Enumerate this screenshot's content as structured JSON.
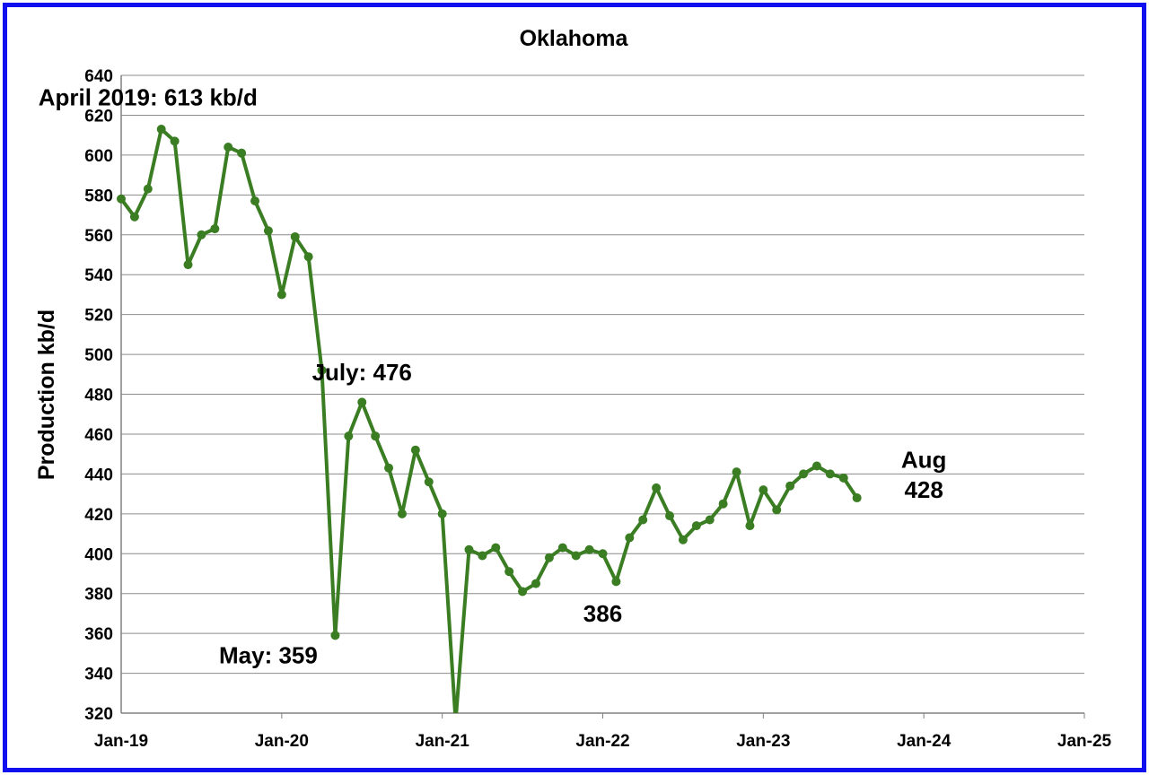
{
  "chart_data": {
    "type": "line",
    "title": "Oklahoma",
    "xlabel": "",
    "ylabel": "Production kb/d",
    "x_tick_labels": [
      "Jan-19",
      "Jan-20",
      "Jan-21",
      "Jan-22",
      "Jan-23",
      "Jan-24",
      "Jan-25"
    ],
    "xlim": [
      "2019-01",
      "2025-01"
    ],
    "ylim": [
      320,
      640
    ],
    "y_ticks": [
      320,
      340,
      360,
      380,
      400,
      420,
      440,
      460,
      480,
      500,
      520,
      540,
      560,
      580,
      600,
      620,
      640
    ],
    "grid": true,
    "legend": "none",
    "series": [
      {
        "color": "#3a7d22",
        "x": [
          "2019-01",
          "2019-02",
          "2019-03",
          "2019-04",
          "2019-05",
          "2019-06",
          "2019-07",
          "2019-08",
          "2019-09",
          "2019-10",
          "2019-11",
          "2019-12",
          "2020-01",
          "2020-02",
          "2020-03",
          "2020-04",
          "2020-05",
          "2020-06",
          "2020-07",
          "2020-08",
          "2020-09",
          "2020-10",
          "2020-11",
          "2020-12",
          "2021-01",
          "2021-02",
          "2021-03",
          "2021-04",
          "2021-05",
          "2021-06",
          "2021-07",
          "2021-08",
          "2021-09",
          "2021-10",
          "2021-11",
          "2021-12",
          "2022-01",
          "2022-02",
          "2022-03",
          "2022-04",
          "2022-05",
          "2022-06",
          "2022-07",
          "2022-08",
          "2022-09",
          "2022-10",
          "2022-11",
          "2022-12",
          "2023-01",
          "2023-02",
          "2023-03",
          "2023-04",
          "2023-05",
          "2023-06",
          "2023-07",
          "2023-08"
        ],
        "values": [
          578,
          569,
          583,
          613,
          607,
          545,
          560,
          563,
          604,
          601,
          577,
          562,
          530,
          559,
          549,
          492,
          359,
          459,
          476,
          459,
          443,
          420,
          452,
          436,
          420,
          316,
          402,
          399,
          403,
          391,
          381,
          385,
          398,
          403,
          399,
          402,
          400,
          386,
          408,
          417,
          433,
          419,
          407,
          414,
          417,
          425,
          441,
          414,
          432,
          422,
          434,
          440,
          444,
          440,
          438,
          428
        ]
      }
    ],
    "annotations": [
      {
        "text": "April 2019: 613 kb/d",
        "x": "2019-03",
        "y": 625
      },
      {
        "text": "July: 476",
        "x": "2020-07",
        "y": 487
      },
      {
        "text": "May: 359",
        "x": "2019-12",
        "y": 345
      },
      {
        "text": "386",
        "x": "2022-01",
        "y": 366
      },
      {
        "text": "Aug",
        "x": "2024-01",
        "y": 443
      },
      {
        "text": "428",
        "x": "2024-01",
        "y": 428
      }
    ]
  }
}
